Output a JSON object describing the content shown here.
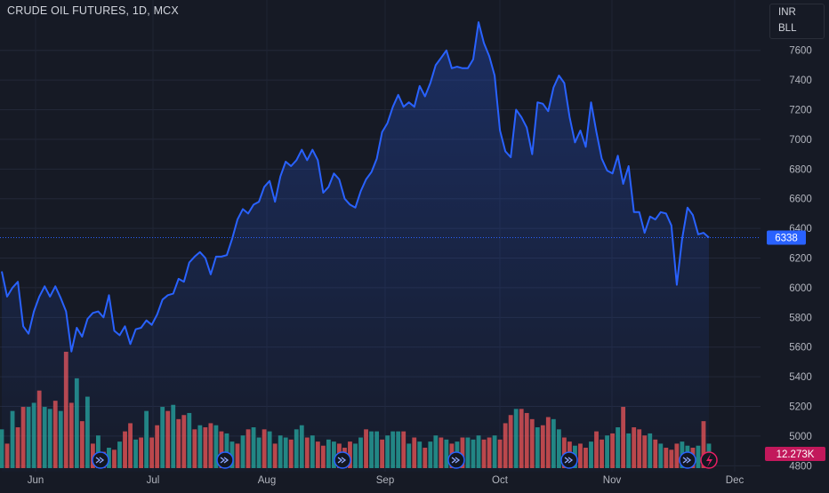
{
  "header": {
    "title": "CRUDE OIL FUTURES, 1D, MCX",
    "legend": [
      "INR",
      "BLL"
    ]
  },
  "colors": {
    "background": "#161a25",
    "price_line": "#2962ff",
    "volume_up": "#26a69a",
    "volume_down": "#ef5350",
    "last_price_badge": "#2962ff",
    "volume_badge": "#c2185b"
  },
  "badges": {
    "last_price": "6338",
    "last_volume": "12.273K"
  },
  "chart_data": {
    "type": "line",
    "title": "CRUDE OIL FUTURES, 1D, MCX",
    "x_ticks": [
      "Jun",
      "Jul",
      "Aug",
      "Sep",
      "Oct",
      "Nov",
      "Dec"
    ],
    "y_ticks": [
      4800,
      5000,
      5200,
      5400,
      5600,
      5800,
      6000,
      6200,
      6400,
      6600,
      6800,
      7000,
      7200,
      7400,
      7600
    ],
    "ylim": [
      4760,
      7790
    ],
    "grid": true,
    "legend_position": "top-right",
    "series": [
      {
        "values": [
          6110,
          5940,
          6000,
          6040,
          5740,
          5690,
          5840,
          5940,
          6010,
          5940,
          6010,
          5930,
          5840,
          5570,
          5730,
          5670,
          5790,
          5830,
          5840,
          5800,
          5950,
          5710,
          5680,
          5740,
          5620,
          5720,
          5730,
          5780,
          5750,
          5820,
          5920,
          5950,
          5960,
          6060,
          6040,
          6170,
          6210,
          6240,
          6200,
          6090,
          6210,
          6210,
          6220,
          6330,
          6460,
          6530,
          6500,
          6560,
          6580,
          6680,
          6720,
          6580,
          6750,
          6850,
          6820,
          6860,
          6930,
          6860,
          6930,
          6860,
          6640,
          6680,
          6770,
          6730,
          6600,
          6560,
          6540,
          6650,
          6730,
          6780,
          6870,
          7050,
          7110,
          7220,
          7300,
          7220,
          7250,
          7220,
          7360,
          7290,
          7380,
          7500,
          7550,
          7600,
          7480,
          7490,
          7480,
          7480,
          7540,
          7790,
          7650,
          7560,
          7430,
          7060,
          6920,
          6880,
          7200,
          7150,
          7080,
          6900,
          7250,
          7240,
          7190,
          7350,
          7430,
          7380,
          7150,
          6980,
          7060,
          6950,
          7250,
          7050,
          6870,
          6790,
          6770,
          6890,
          6700,
          6820,
          6510,
          6510,
          6370,
          6480,
          6460,
          6510,
          6500,
          6420,
          6020,
          6330,
          6540,
          6490,
          6360,
          6370,
          6338
        ]
      }
    ],
    "volume": {
      "label": "12.273K",
      "values": [
        19,
        12,
        28,
        20,
        30,
        30,
        32,
        38,
        30,
        29,
        33,
        28,
        57,
        32,
        44,
        23,
        35,
        12,
        16,
        8,
        10,
        9,
        13,
        18,
        22,
        14,
        15,
        28,
        15,
        21,
        30,
        28,
        31,
        24,
        26,
        27,
        19,
        21,
        20,
        22,
        21,
        18,
        17,
        13,
        12,
        16,
        19,
        20,
        15,
        19,
        18,
        12,
        16,
        15,
        14,
        19,
        21,
        15,
        16,
        13,
        11,
        14,
        13,
        12,
        10,
        13,
        12,
        15,
        19,
        18,
        18,
        14,
        16,
        18,
        18,
        18,
        12,
        15,
        13,
        10,
        13,
        16,
        15,
        14,
        12,
        13,
        15,
        15,
        14,
        16,
        14,
        15,
        16,
        14,
        22,
        26,
        29,
        29,
        27,
        24,
        20,
        21,
        25,
        24,
        19,
        15,
        13,
        11,
        12,
        10,
        13,
        18,
        14,
        16,
        17,
        20,
        30,
        17,
        20,
        19,
        16,
        17,
        14,
        12,
        10,
        9,
        12,
        13,
        11,
        10,
        11,
        23,
        12
      ],
      "down": [
        0,
        1,
        0,
        1,
        1,
        0,
        0,
        1,
        0,
        0,
        1,
        0,
        1,
        1,
        0,
        1,
        0,
        1,
        0,
        1,
        0,
        1,
        0,
        1,
        1,
        0,
        1,
        0,
        1,
        1,
        0,
        1,
        0,
        1,
        1,
        0,
        1,
        0,
        1,
        1,
        0,
        1,
        0,
        0,
        1,
        0,
        1,
        0,
        0,
        1,
        0,
        1,
        0,
        0,
        1,
        0,
        0,
        1,
        0,
        1,
        1,
        0,
        0,
        1,
        1,
        1,
        0,
        0,
        1,
        0,
        0,
        1,
        0,
        0,
        0,
        1,
        0,
        1,
        0,
        1,
        0,
        0,
        1,
        0,
        1,
        0,
        1,
        0,
        0,
        0,
        1,
        1,
        0,
        1,
        1,
        1,
        0,
        1,
        1,
        1,
        0,
        1,
        1,
        0,
        0,
        1,
        1,
        0,
        1,
        1,
        0,
        1,
        1,
        0,
        1,
        0,
        1,
        0,
        1,
        1,
        1,
        0,
        1,
        0,
        1,
        1,
        1,
        0,
        0,
        1,
        0,
        1,
        0
      ]
    }
  }
}
